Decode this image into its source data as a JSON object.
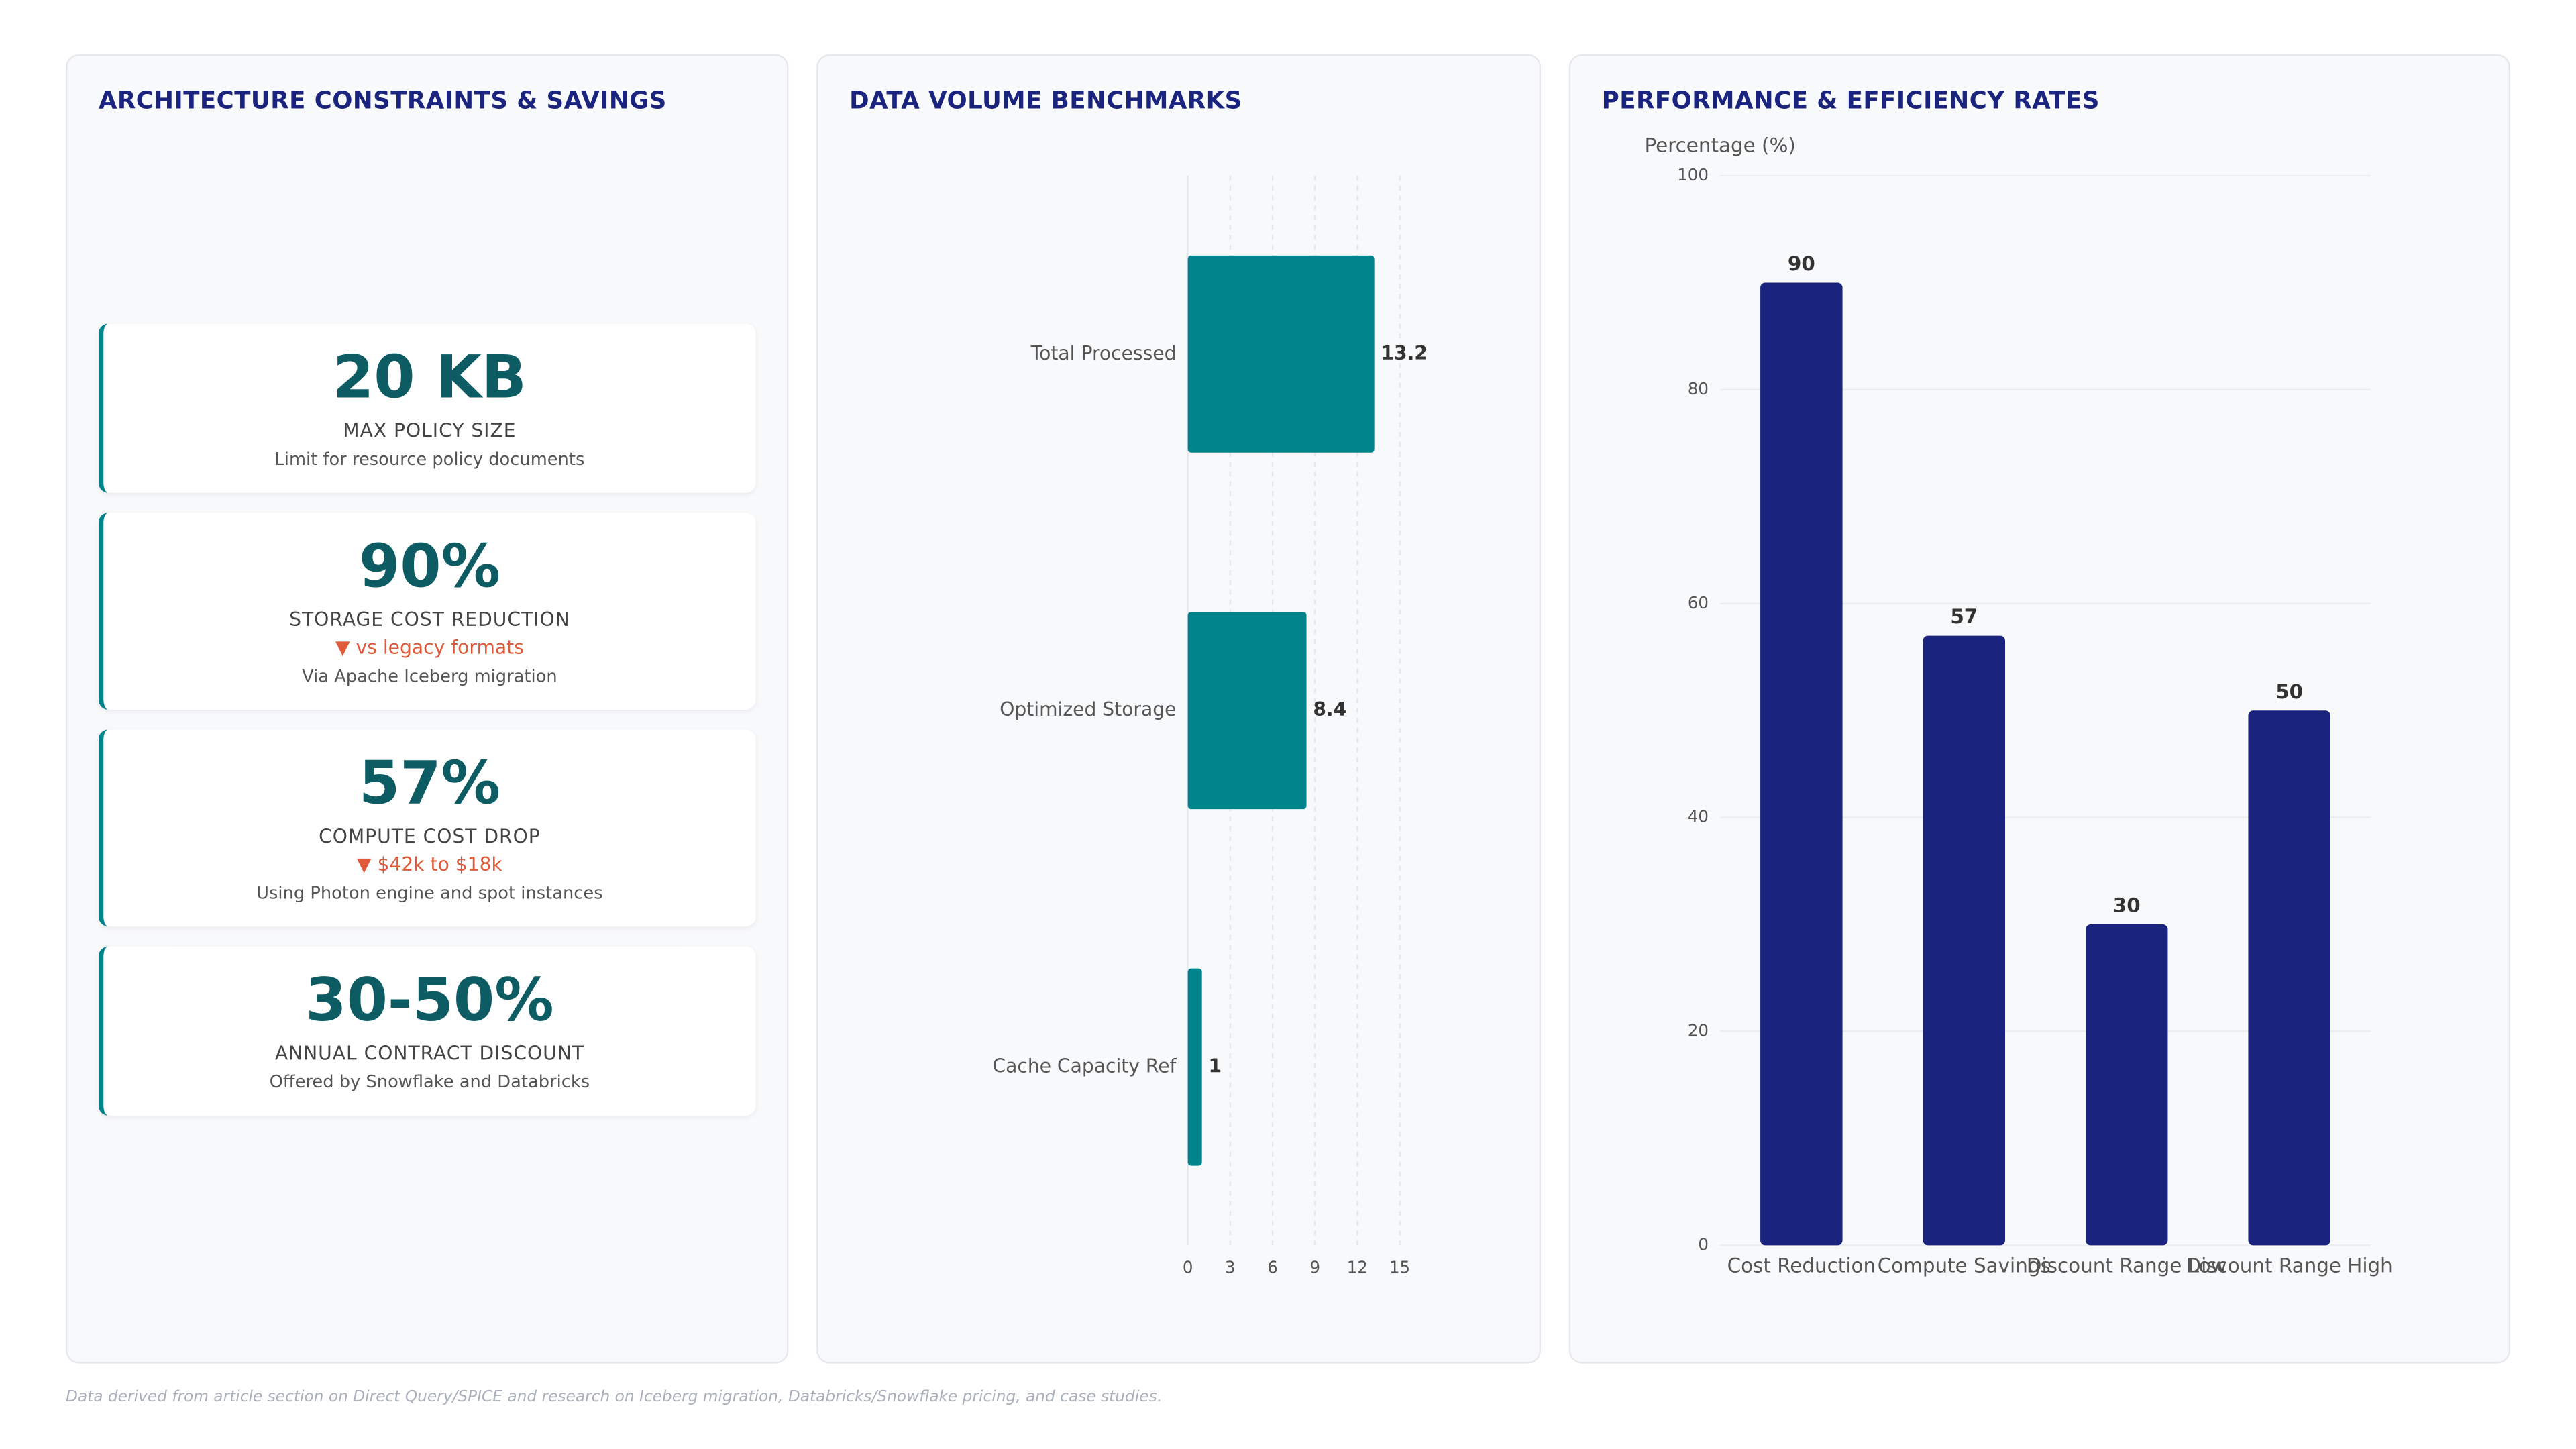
{
  "kpi_panel": {
    "title": "ARCHITECTURE CONSTRAINTS & SAVINGS",
    "cards": [
      {
        "value": "20 KB",
        "label": "MAX POLICY SIZE",
        "description": "Limit for resource policy documents"
      },
      {
        "value": "90%",
        "label": "STORAGE COST REDUCTION",
        "trend": "▼ vs legacy formats",
        "description": "Via Apache Iceberg migration"
      },
      {
        "value": "57%",
        "label": "COMPUTE COST DROP",
        "trend": "▼ $42k to $18k",
        "description": "Using Photon engine and spot instances"
      },
      {
        "value": "30-50%",
        "label": "ANNUAL CONTRACT DISCOUNT",
        "description": "Offered by Snowflake and Databricks"
      }
    ]
  },
  "chart_data": [
    {
      "type": "hbar",
      "title": "DATA VOLUME BENCHMARKS",
      "categories": [
        "Total Processed",
        "Optimized Storage",
        "Cache Capacity Ref"
      ],
      "values": [
        13.2,
        8.4,
        1
      ],
      "color": "#00838a",
      "xlim": [
        0,
        15
      ],
      "xticks": [
        0,
        3,
        6,
        9,
        12,
        15
      ],
      "grid": true
    },
    {
      "type": "bar",
      "title": "PERFORMANCE & EFFICIENCY RATES",
      "y_label": "Percentage (%)",
      "categories": [
        "Cost Reduction",
        "Compute Savings",
        "Discount Range Low",
        "Discount Range High"
      ],
      "values": [
        90,
        57,
        30,
        50
      ],
      "color": "#1a237e",
      "ylim": [
        0,
        100
      ],
      "yticks": [
        0,
        20,
        40,
        60,
        80,
        100
      ],
      "grid": true
    }
  ],
  "footnote": "Data derived from article section on Direct Query/SPICE and research on Iceberg migration, Databricks/Snowflake pricing, and case studies."
}
